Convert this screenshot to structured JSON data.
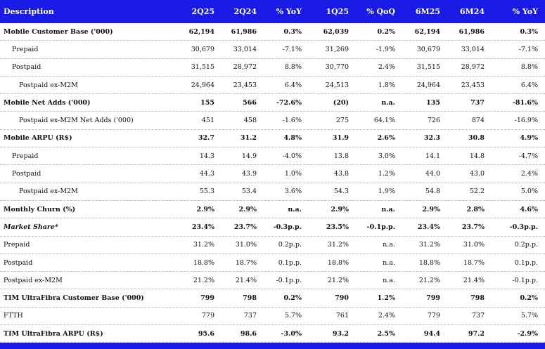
{
  "header": [
    "Description",
    "2Q25",
    "2Q24",
    "% YoY",
    "1Q25",
    "% QoQ",
    "6M25",
    "6M24",
    "% YoY"
  ],
  "rows": [
    {
      "label": "Mobile Customer Base ('000)",
      "values": [
        "62,194",
        "61,986",
        "0.3%",
        "62,039",
        "0.2%",
        "62,194",
        "61,986",
        "0.3%"
      ]
    },
    {
      "label": "Prepaid",
      "values": [
        "30,679",
        "33,014",
        "-7.1%",
        "31,269",
        "-1.9%",
        "30,679",
        "33,014",
        "-7.1%"
      ]
    },
    {
      "label": "Postpaid",
      "values": [
        "31,515",
        "28,972",
        "8.8%",
        "30,770",
        "2.4%",
        "31,515",
        "28,972",
        "8.8%"
      ]
    },
    {
      "label": "Postpaid ex-M2M",
      "values": [
        "24,964",
        "23,453",
        "6.4%",
        "24,513",
        "1.8%",
        "24,964",
        "23,453",
        "6.4%"
      ]
    },
    {
      "label": "Mobile Net Adds ('000)",
      "values": [
        "155",
        "566",
        "-72.6%",
        "(20)",
        "n.a.",
        "135",
        "737",
        "-81.6%"
      ]
    },
    {
      "label": "Postpaid ex-M2M Net Adds ('000)",
      "values": [
        "451",
        "458",
        "-1.6%",
        "275",
        "64.1%",
        "726",
        "874",
        "-16.9%"
      ]
    },
    {
      "label": "Mobile ARPU (R$)",
      "values": [
        "32.7",
        "31.2",
        "4.8%",
        "31.9",
        "2.6%",
        "32.3",
        "30.8",
        "4.9%"
      ]
    },
    {
      "label": "Prepaid",
      "values": [
        "14.3",
        "14.9",
        "-4.0%",
        "13.8",
        "3.0%",
        "14.1",
        "14.8",
        "-4.7%"
      ]
    },
    {
      "label": "Postpaid",
      "values": [
        "44.3",
        "43.9",
        "1.0%",
        "43.8",
        "1.2%",
        "44.0",
        "43.0",
        "2.4%"
      ]
    },
    {
      "label": "Postpaid ex-M2M",
      "values": [
        "55.3",
        "53.4",
        "3.6%",
        "54.3",
        "1.9%",
        "54.8",
        "52.2",
        "5.0%"
      ]
    },
    {
      "label": "Monthly Churn (%)",
      "values": [
        "2.9%",
        "2.9%",
        "n.a.",
        "2.9%",
        "n.a.",
        "2.9%",
        "2.8%",
        "4.6%"
      ]
    },
    {
      "label": "Market Share*",
      "values": [
        "23.4%",
        "23.7%",
        "-0.3p.p.",
        "23.5%",
        "-0.1p.p.",
        "23.4%",
        "23.7%",
        "-0.3p.p."
      ]
    },
    {
      "label": "Prepaid",
      "values": [
        "31.2%",
        "31.0%",
        "0.2p.p.",
        "31.2%",
        "n.a.",
        "31.2%",
        "31.0%",
        "0.2p.p."
      ]
    },
    {
      "label": "Postpaid",
      "values": [
        "18.8%",
        "18.7%",
        "0.1p.p.",
        "18.8%",
        "n.a.",
        "18.8%",
        "18.7%",
        "0.1p.p."
      ]
    },
    {
      "label": "Postpaid ex-M2M",
      "values": [
        "21.2%",
        "21.4%",
        "-0.1p.p.",
        "21.2%",
        "n.a.",
        "21.2%",
        "21.4%",
        "-0.1p.p."
      ]
    },
    {
      "label": "TIM UltraFibra Customer Base ('000)",
      "values": [
        "799",
        "798",
        "0.2%",
        "790",
        "1.2%",
        "799",
        "798",
        "0.2%"
      ]
    },
    {
      "label": "FTTH",
      "values": [
        "779",
        "737",
        "5.7%",
        "761",
        "2.4%",
        "779",
        "737",
        "5.7%"
      ]
    },
    {
      "label": "TIM UltraFibra ARPU (R$)",
      "values": [
        "95.6",
        "98.6",
        "-3.0%",
        "93.2",
        "2.5%",
        "94.4",
        "97.2",
        "-2.9%"
      ]
    }
  ]
}
